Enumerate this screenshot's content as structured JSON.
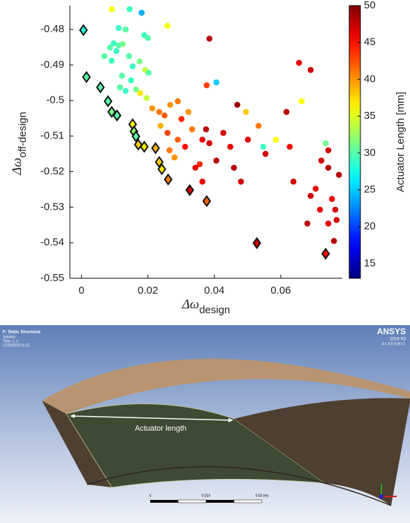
{
  "chart_data": {
    "type": "scatter",
    "xlabel": {
      "symbol": "Δω",
      "subscript": "design"
    },
    "ylabel": {
      "symbol": "Δω",
      "subscript": "off-design"
    },
    "xlim": [
      -0.0035,
      0.0785
    ],
    "xticks": [
      0,
      0.02,
      0.04,
      0.06
    ],
    "ylim": [
      -0.55,
      -0.4733
    ],
    "yticks": [
      -0.55,
      -0.54,
      -0.53,
      -0.52,
      -0.51,
      -0.5,
      -0.49,
      -0.48
    ],
    "colorbar": {
      "label": "Actuator Length [mm]",
      "colormap": "jet",
      "clim": [
        13,
        50
      ],
      "ticks": [
        15,
        20,
        25,
        30,
        35,
        40,
        45,
        50
      ]
    },
    "series": [
      {
        "marker": "circle",
        "x": [
          0.0091,
          0.0145,
          0.0181,
          0.0259,
          0.0112,
          0.0133,
          0.0189,
          0.02,
          0.0086,
          0.0097,
          0.0112,
          0.0124,
          0.0105,
          0.0069,
          0.0143,
          0.0091,
          0.0175,
          0.0154,
          0.0192,
          0.0202,
          0.0122,
          0.0149,
          0.0116,
          0.0133,
          0.0164,
          0.0177,
          0.0196,
          0.0213,
          0.0234,
          0.025,
          0.0267,
          0.029,
          0.0301,
          0.0322,
          0.0238,
          0.0259,
          0.029,
          0.0312,
          0.0265,
          0.028,
          0.0343,
          0.0333,
          0.0364,
          0.0385,
          0.0375,
          0.0385,
          0.0406,
          0.0427,
          0.0448,
          0.0459,
          0.048,
          0.0364,
          0.0356,
          0.0469,
          0.0495,
          0.0406,
          0.0377,
          0.0501,
          0.0533,
          0.0554,
          0.0585,
          0.0627,
          0.0638,
          0.0617,
          0.0655,
          0.069,
          0.0663,
          0.0705,
          0.0722,
          0.0743,
          0.0754,
          0.0764,
          0.0775,
          0.0743,
          0.0768,
          0.076,
          0.069,
          0.068,
          0.0718,
          0.0735,
          0.0743,
          0.0547
        ],
        "y": [
          -0.4743,
          -0.4743,
          -0.4753,
          -0.479,
          -0.4796,
          -0.48,
          -0.4816,
          -0.4824,
          -0.4851,
          -0.4839,
          -0.4845,
          -0.4841,
          -0.4861,
          -0.4875,
          -0.4875,
          -0.4888,
          -0.489,
          -0.4904,
          -0.4914,
          -0.4922,
          -0.493,
          -0.4943,
          -0.4963,
          -0.4973,
          -0.4969,
          -0.4979,
          -0.4993,
          -0.5022,
          -0.5032,
          -0.5042,
          -0.5012,
          -0.5002,
          -0.5052,
          -0.5032,
          -0.5071,
          -0.5091,
          -0.511,
          -0.513,
          -0.514,
          -0.516,
          -0.5189,
          -0.5081,
          -0.511,
          -0.4826,
          -0.5081,
          -0.512,
          -0.5169,
          -0.5091,
          -0.513,
          -0.5189,
          -0.5228,
          -0.5228,
          -0.5179,
          -0.5012,
          -0.5032,
          -0.4949,
          -0.4957,
          -0.511,
          -0.5071,
          -0.515,
          -0.511,
          -0.513,
          -0.5228,
          -0.5032,
          -0.4894,
          -0.4914,
          -0.5002,
          -0.5248,
          -0.5169,
          -0.5189,
          -0.5277,
          -0.5307,
          -0.5209,
          -0.5346,
          -0.5336,
          -0.5395,
          -0.5268,
          -0.5346,
          -0.5307,
          -0.512,
          -0.514,
          -0.513
        ],
        "c": [
          36,
          29,
          24,
          36,
          29,
          30,
          29,
          30,
          30,
          29,
          30,
          31,
          29,
          30,
          30,
          29,
          31,
          29,
          34,
          30,
          30,
          29,
          30,
          29,
          31,
          37,
          34,
          40,
          41,
          42,
          40,
          41,
          44,
          40,
          39,
          43,
          42,
          45,
          41,
          40,
          46,
          41,
          46,
          48,
          48,
          47,
          48,
          47,
          46,
          48,
          47,
          46,
          44,
          49,
          38,
          25,
          43,
          46,
          41,
          47,
          36,
          45,
          47,
          48,
          46,
          47,
          36,
          46,
          47,
          48,
          46,
          47,
          48,
          46,
          47,
          48,
          47,
          48,
          46,
          31,
          47,
          29
        ]
      },
      {
        "marker": "diamond",
        "x": [
          0.0006,
          0.0015,
          0.0057,
          0.008,
          0.0091,
          0.0107,
          0.0154,
          0.0158,
          0.0164,
          0.0171,
          0.0189,
          0.0223,
          0.0234,
          0.0242,
          0.0261,
          0.0326,
          0.0377,
          0.0528,
          0.0735
        ],
        "y": [
          -0.4802,
          -0.4934,
          -0.4963,
          -0.5002,
          -0.5032,
          -0.5042,
          -0.5067,
          -0.5087,
          -0.5101,
          -0.5124,
          -0.513,
          -0.5134,
          -0.5173,
          -0.5193,
          -0.5222,
          -0.5252,
          -0.5283,
          -0.5401,
          -0.5431
        ],
        "c": [
          28,
          30,
          30,
          30,
          31,
          30,
          36,
          32,
          30,
          38,
          37,
          39,
          38,
          37,
          41,
          47,
          42,
          47,
          45
        ]
      }
    ]
  },
  "screenshot": {
    "header": [
      "F: Static Structural",
      "Solution",
      "Time: 1. s",
      "12/11/2020 11:22"
    ],
    "brand": {
      "name": "ANSYS",
      "version": "2019 R3",
      "edition": "ACADEMIC"
    },
    "annotation": "Actuator length",
    "scale": [
      "0",
      "0.015",
      "0.03 (m)"
    ]
  }
}
